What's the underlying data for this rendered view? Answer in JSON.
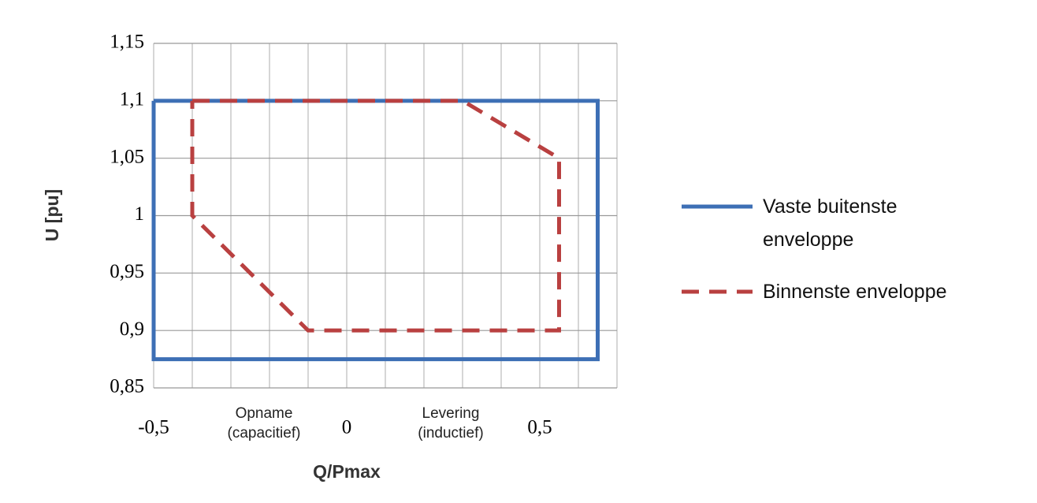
{
  "chart_data": {
    "type": "line",
    "xlabel": "Q/Pmax",
    "ylabel": "U [pu]",
    "annotations": [
      "Opname (capacitief)",
      "Levering (inductief)"
    ],
    "xlim": [
      -0.5,
      0.7
    ],
    "xticks": [
      {
        "value": -0.5,
        "label": "-0,5"
      },
      0,
      {
        "value": 0.5,
        "label": "0,5"
      }
    ],
    "xgrid": [
      -0.5,
      -0.4,
      -0.3,
      -0.2,
      -0.1,
      0,
      0.1,
      0.2,
      0.3,
      0.4,
      0.5,
      0.6,
      0.7
    ],
    "ylim": [
      0.85,
      1.15
    ],
    "yticks": [
      {
        "value": 0.85,
        "label": "0,85"
      },
      {
        "value": 0.9,
        "label": "0,9"
      },
      {
        "value": 0.95,
        "label": "0,95"
      },
      1,
      {
        "value": 1.05,
        "label": "1,05"
      },
      {
        "value": 1.1,
        "label": "1,1"
      },
      {
        "value": 1.15,
        "label": "1,15"
      }
    ],
    "grid": true,
    "series": [
      {
        "name": "Vaste buitenste enveloppe",
        "color": "#3d6fb5",
        "dashed": false,
        "x": [
          -0.5,
          0.65,
          0.65,
          -0.5,
          -0.5
        ],
        "values": [
          1.1,
          1.1,
          0.875,
          0.875,
          1.1
        ]
      },
      {
        "name": "Binnenste enveloppe",
        "color": "#b94040",
        "dashed": true,
        "x": [
          -0.4,
          0.3,
          0.55,
          0.55,
          -0.1,
          -0.4,
          -0.4
        ],
        "values": [
          1.1,
          1.1,
          1.05,
          0.9,
          0.9,
          1.0,
          1.1
        ]
      }
    ]
  }
}
